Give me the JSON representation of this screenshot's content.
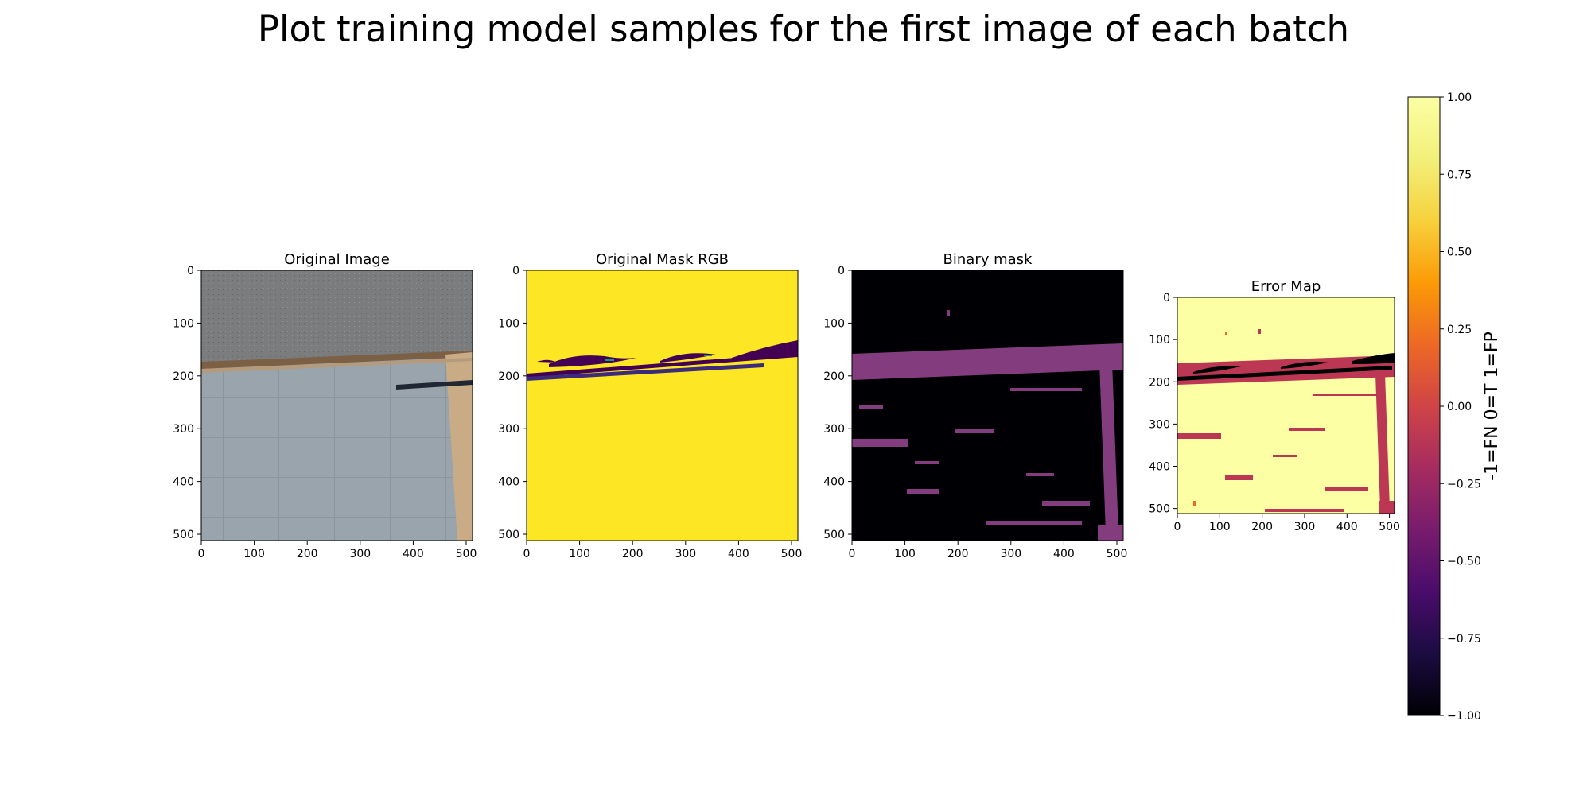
{
  "figure": {
    "suptitle": "Plot training model samples for the first image of each batch"
  },
  "chart_data": [
    {
      "type": "image",
      "title": "Original Image",
      "xticks": [
        0,
        100,
        200,
        300,
        400,
        500
      ],
      "yticks": [
        0,
        100,
        200,
        300,
        400,
        500
      ],
      "xlim": [
        0,
        512
      ],
      "ylim": [
        512,
        0
      ],
      "colors": {
        "asphalt": "#7c7d7e",
        "tiles": "#99a3ab",
        "curb": "#c9ab86",
        "dirt": "#7b6046",
        "pole": "#1f2735"
      }
    },
    {
      "type": "image",
      "title": "Original Mask RGB",
      "xticks": [
        0,
        100,
        200,
        300,
        400,
        500
      ],
      "yticks": [
        0,
        100,
        200,
        300,
        400,
        500
      ],
      "xlim": [
        0,
        512
      ],
      "ylim": [
        512,
        0
      ],
      "colors": {
        "background": "#fde725",
        "foreground": "#440154",
        "edge": "#21918c"
      }
    },
    {
      "type": "image",
      "title": "Binary mask",
      "xticks": [
        0,
        100,
        200,
        300,
        400,
        500
      ],
      "yticks": [
        0,
        100,
        200,
        300,
        400,
        500
      ],
      "xlim": [
        0,
        512
      ],
      "ylim": [
        512,
        0
      ],
      "colors": {
        "background": "#000004",
        "foreground": "#833d7f"
      }
    },
    {
      "type": "heatmap",
      "title": "Error Map",
      "xticks": [
        0,
        100,
        200,
        300,
        400,
        500
      ],
      "yticks": [
        0,
        100,
        200,
        300,
        400,
        500
      ],
      "xlim": [
        0,
        512
      ],
      "ylim": [
        512,
        0
      ],
      "value_colors": {
        "-1": "#000004",
        "0": "#bc3754",
        "1": "#fcffa4"
      },
      "colorbar": {
        "label": "-1=FN 0=T 1=FP",
        "colormap": "inferno",
        "range": [
          -1,
          1
        ],
        "ticks": [
          "1.00",
          "0.75",
          "0.50",
          "0.25",
          "0.00",
          "−0.25",
          "−0.50",
          "−0.75",
          "−1.00"
        ]
      }
    }
  ]
}
